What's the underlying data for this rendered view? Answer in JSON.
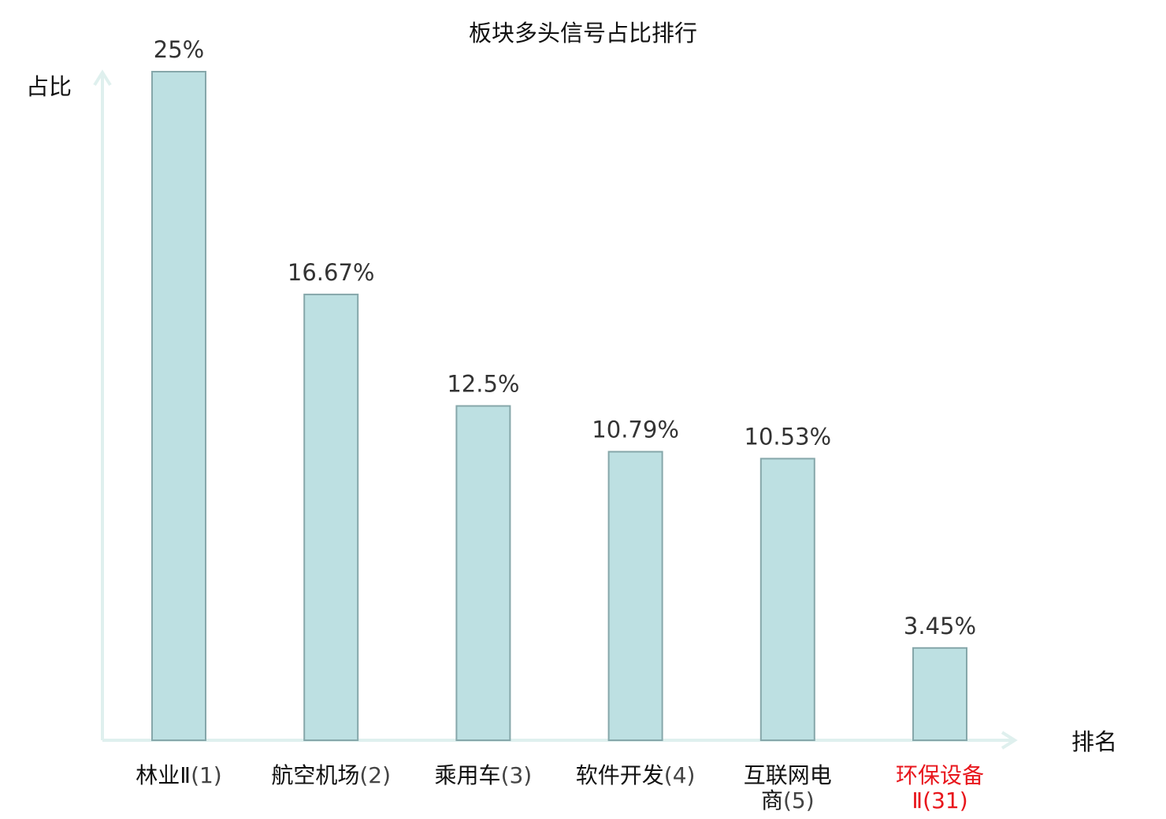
{
  "chart_data": {
    "type": "bar",
    "title": "板块多头信号占比排行",
    "ylabel": "占比",
    "xlabel": "排名",
    "ylim": [
      0,
      25
    ],
    "grid": false,
    "legend": "none",
    "bar_fill_color": "#bde0e2",
    "bar_edge_color": "#86a7aa",
    "axis_color": "#dff0ee",
    "highlight_color": "#e8161c",
    "categories": [
      {
        "name": "林业Ⅱ",
        "rank": "(1)",
        "lines": [
          {
            "name": "林业Ⅱ",
            "rank": "(1)"
          }
        ],
        "highlight": false
      },
      {
        "name": "航空机场",
        "rank": "(2)",
        "lines": [
          {
            "name": "航空机场",
            "rank": "(2)"
          }
        ],
        "highlight": false
      },
      {
        "name": "乘用车",
        "rank": "(3)",
        "lines": [
          {
            "name": "乘用车",
            "rank": "(3)"
          }
        ],
        "highlight": false
      },
      {
        "name": "软件开发",
        "rank": "(4)",
        "lines": [
          {
            "name": "软件开发",
            "rank": "(4)"
          }
        ],
        "highlight": false
      },
      {
        "name": "互联网电商",
        "rank": "(5)",
        "lines": [
          {
            "name": "互联网电",
            "rank": ""
          },
          {
            "name": "商",
            "rank": "(5)"
          }
        ],
        "highlight": false
      },
      {
        "name": "环保设备Ⅱ",
        "rank": "(31)",
        "lines": [
          {
            "name": "环保设备",
            "rank": ""
          },
          {
            "name": "Ⅱ",
            "rank": "(31)"
          }
        ],
        "highlight": true
      }
    ],
    "values": [
      25,
      16.67,
      12.5,
      10.79,
      10.53,
      3.45
    ],
    "value_labels": [
      "25%",
      "16.67%",
      "12.5%",
      "10.79%",
      "10.53%",
      "3.45%"
    ]
  }
}
